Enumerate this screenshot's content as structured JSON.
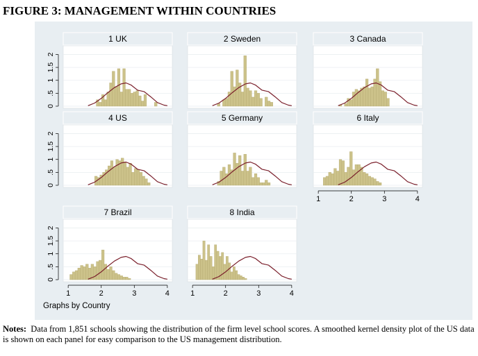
{
  "figure_title": "FIGURE 3: MANAGEMENT WITHIN COUNTRIES",
  "notes_label": "Notes:",
  "notes_text": "Data from 1,851 schools showing the distribution of the firm level school scores. A smoothed kernel density plot of the US data is shown on each panel for easy comparison to the US management distribution.",
  "graphs_by": "Graphs by Country",
  "colors": {
    "background": "#e8eef2",
    "bar_fill": "#ccc28a",
    "bar_stroke": "#b5aa70",
    "kde": "#7a1f2b",
    "strip": "#e8eef2"
  },
  "chart_data": {
    "type": "bar",
    "x_ticks": [
      1,
      2,
      3,
      4
    ],
    "y_ticks": [
      0,
      0.5,
      1,
      1.5,
      2
    ],
    "y_tick_labels": [
      "0",
      ".5",
      "1",
      "1.5",
      "2"
    ],
    "xlim": [
      0.85,
      4.15
    ],
    "ylim": [
      0,
      2.2
    ],
    "us_kde": {
      "x": [
        1.6,
        1.8,
        2.0,
        2.2,
        2.4,
        2.6,
        2.75,
        2.9,
        3.1,
        3.3,
        3.5,
        3.7,
        3.9,
        4.0
      ],
      "y": [
        0.02,
        0.12,
        0.3,
        0.52,
        0.72,
        0.86,
        0.9,
        0.82,
        0.62,
        0.56,
        0.36,
        0.14,
        0.04,
        0.02
      ]
    },
    "panels": [
      {
        "title": "1 UK",
        "bin_start": 1.85,
        "bin_width": 0.08,
        "values": [
          0.25,
          0.15,
          0.45,
          0.25,
          0.55,
          0.9,
          1.35,
          0.75,
          1.45,
          0.55,
          1.45,
          0.65,
          0.65,
          0.5,
          0.55,
          0.6,
          0.4,
          0.2,
          0.45,
          0,
          0,
          0,
          0.15
        ]
      },
      {
        "title": "2 Sweden",
        "bin_start": 1.75,
        "bin_width": 0.08,
        "values": [
          0.1,
          0,
          0.25,
          0.3,
          0.55,
          1.35,
          0.75,
          1.4,
          0.9,
          0.55,
          1.95,
          0.7,
          0.6,
          0.35,
          0.6,
          0.5,
          0.3,
          0,
          0.35,
          0.2,
          0.15
        ]
      },
      {
        "title": "3 Canada",
        "bin_start": 1.55,
        "bin_width": 0.08,
        "values": [
          0,
          0.05,
          0,
          0.1,
          0.3,
          0.25,
          0.55,
          0.65,
          0.6,
          0.7,
          0.75,
          1.05,
          0.7,
          0.75,
          1.05,
          1.45,
          0.95,
          0.6,
          0.55,
          0.3
        ]
      },
      {
        "title": "4 US",
        "bin_start": 1.8,
        "bin_width": 0.08,
        "values": [
          0.35,
          0.3,
          0.4,
          0.5,
          0.6,
          0.75,
          0.95,
          0.7,
          1.0,
          0.95,
          1.05,
          0.9,
          0.7,
          0.85,
          0.5,
          0.65,
          0.6,
          0.5,
          0.35,
          0.25,
          0.1
        ]
      },
      {
        "title": "5 Germany",
        "bin_start": 1.75,
        "bin_width": 0.08,
        "values": [
          0.15,
          0.55,
          0.7,
          0.45,
          0.8,
          0.6,
          1.25,
          0.85,
          1.15,
          0.55,
          1.2,
          0.55,
          0.7,
          0.3,
          0.45,
          0.3,
          0.1,
          0.1,
          0.2,
          0.1
        ]
      },
      {
        "title": "6 Italy",
        "bin_start": 1.15,
        "bin_width": 0.08,
        "values": [
          0.3,
          0.35,
          0.5,
          0.45,
          0.65,
          0.55,
          1.0,
          0.95,
          0.5,
          0.7,
          1.3,
          0.6,
          0.8,
          0.8,
          0.7,
          0.5,
          0.45,
          0.35,
          0.3,
          0.25,
          0.15,
          0.1
        ]
      },
      {
        "title": "7 Brazil",
        "bin_start": 1.05,
        "bin_width": 0.08,
        "values": [
          0.2,
          0.3,
          0.35,
          0.45,
          0.55,
          0.5,
          0.6,
          0.45,
          0.6,
          0.5,
          0.7,
          0.75,
          1.15,
          0.6,
          0.4,
          0.5,
          0.35,
          0.25,
          0.2,
          0.15,
          0.1,
          0.1,
          0.05
        ]
      },
      {
        "title": "8 India",
        "bin_start": 1.1,
        "bin_width": 0.07,
        "values": [
          0.6,
          0.95,
          0.8,
          1.5,
          0.75,
          1.35,
          0.9,
          0.5,
          1.35,
          1.1,
          0.9,
          1.05,
          0.6,
          0.9,
          0.65,
          0.3,
          0.5,
          0.35,
          0.2,
          0.15,
          0.1,
          0.05
        ]
      }
    ]
  }
}
